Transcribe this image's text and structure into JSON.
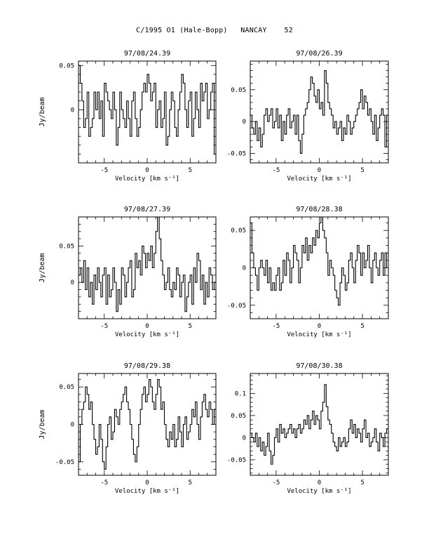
{
  "page": {
    "title": "C/1995 O1 (Hale-Bopp)   NANCAY    52"
  },
  "chart_data": [
    {
      "type": "line",
      "title": "97/08/24.39",
      "xlabel": "Velocity [km s⁻¹]",
      "ylabel": "Jy/beam",
      "xlim": [
        -8,
        8
      ],
      "ylim": [
        -0.06,
        0.055
      ],
      "xticks": [
        -5,
        0,
        5
      ],
      "xtick_labels": [
        "-5",
        "0",
        "5"
      ],
      "yticks": [
        0,
        0.05
      ],
      "ytick_labels": [
        "0",
        "0.05"
      ],
      "series": [
        {
          "x_start": -8,
          "x_step": 0.2,
          "y": [
            0.05,
            0.03,
            0.01,
            -0.02,
            -0.01,
            0.02,
            -0.03,
            -0.02,
            -0.01,
            0.02,
            0.0,
            0.02,
            -0.01,
            0.01,
            -0.03,
            0.03,
            0.02,
            0.01,
            0.0,
            -0.01,
            0.02,
            0.0,
            -0.04,
            -0.02,
            0.02,
            0.0,
            -0.01,
            -0.02,
            0.01,
            -0.01,
            -0.03,
            0.01,
            0.02,
            -0.01,
            -0.03,
            -0.02,
            0.0,
            0.02,
            0.03,
            0.02,
            0.04,
            0.03,
            0.01,
            0.02,
            0.03,
            -0.02,
            0.0,
            0.01,
            -0.02,
            -0.01,
            0.02,
            -0.04,
            -0.03,
            0.0,
            0.02,
            0.01,
            -0.02,
            -0.03,
            0.0,
            0.02,
            0.04,
            0.03,
            0.0,
            -0.02,
            0.01,
            0.02,
            -0.03,
            -0.01,
            0.02,
            0.0,
            -0.02,
            0.03,
            0.01,
            0.02,
            0.03,
            -0.01,
            0.0,
            0.02,
            0.03,
            -0.05
          ]
        }
      ]
    },
    {
      "type": "line",
      "title": "97/08/26.39",
      "xlabel": "Velocity [km s⁻¹]",
      "ylabel": "",
      "xlim": [
        -8,
        8
      ],
      "ylim": [
        -0.065,
        0.095
      ],
      "xticks": [
        -5,
        0,
        5
      ],
      "xtick_labels": [
        "-5",
        "0",
        "5"
      ],
      "yticks": [
        -0.05,
        0,
        0.05
      ],
      "ytick_labels": [
        "-0.05",
        "0",
        "0.05"
      ],
      "series": [
        {
          "x_start": -8,
          "x_step": 0.2,
          "y": [
            0.01,
            -0.01,
            -0.02,
            0.0,
            -0.03,
            -0.01,
            -0.04,
            -0.02,
            0.01,
            0.02,
            0.0,
            0.01,
            0.02,
            -0.01,
            0.0,
            0.02,
            -0.01,
            0.01,
            -0.03,
            0.0,
            -0.02,
            0.01,
            0.02,
            -0.01,
            0.0,
            0.01,
            -0.02,
            0.01,
            -0.03,
            -0.05,
            -0.02,
            0.01,
            0.02,
            0.03,
            0.05,
            0.07,
            0.06,
            0.04,
            0.03,
            0.05,
            0.02,
            0.03,
            0.01,
            0.08,
            0.06,
            0.03,
            0.02,
            0.01,
            -0.01,
            0.0,
            -0.02,
            -0.01,
            0.0,
            -0.03,
            -0.01,
            -0.02,
            0.01,
            0.0,
            -0.02,
            -0.01,
            0.0,
            0.01,
            0.02,
            0.03,
            0.05,
            0.02,
            0.04,
            0.03,
            0.01,
            0.02,
            0.0,
            -0.02,
            0.01,
            -0.03,
            -0.01,
            0.01,
            0.02,
            0.01,
            -0.04,
            0.01
          ]
        }
      ]
    },
    {
      "type": "line",
      "title": "97/08/27.39",
      "xlabel": "Velocity [km s⁻¹]",
      "ylabel": "Jy/beam",
      "xlim": [
        -8,
        8
      ],
      "ylim": [
        -0.05,
        0.09
      ],
      "xticks": [
        -5,
        0,
        5
      ],
      "xtick_labels": [
        "-5",
        "0",
        "5"
      ],
      "yticks": [
        0,
        0.05
      ],
      "ytick_labels": [
        "0",
        "0.05"
      ],
      "series": [
        {
          "x_start": -8,
          "x_step": 0.2,
          "y": [
            0.01,
            0.02,
            0.0,
            0.03,
            -0.01,
            0.02,
            -0.02,
            0.0,
            -0.03,
            0.01,
            -0.01,
            0.02,
            0.0,
            -0.02,
            0.01,
            0.02,
            -0.03,
            0.01,
            -0.02,
            -0.01,
            0.02,
            0.0,
            -0.04,
            -0.01,
            -0.03,
            0.02,
            0.01,
            -0.02,
            0.0,
            0.02,
            0.03,
            -0.02,
            -0.01,
            0.04,
            0.02,
            0.03,
            0.01,
            0.05,
            0.04,
            0.02,
            0.04,
            0.03,
            0.05,
            0.02,
            0.04,
            0.07,
            0.09,
            0.06,
            0.03,
            0.01,
            -0.01,
            0.0,
            0.02,
            -0.01,
            -0.02,
            0.0,
            -0.01,
            0.02,
            0.01,
            -0.02,
            0.0,
            0.01,
            -0.04,
            -0.02,
            0.0,
            0.01,
            -0.03,
            0.02,
            0.0,
            0.04,
            0.03,
            -0.01,
            0.01,
            -0.03,
            0.0,
            -0.02,
            0.02,
            0.01,
            -0.01,
            0.0
          ]
        }
      ]
    },
    {
      "type": "line",
      "title": "97/08/28.38",
      "xlabel": "Velocity [km s⁻¹]",
      "ylabel": "",
      "xlim": [
        -8,
        8
      ],
      "ylim": [
        -0.068,
        0.068
      ],
      "xticks": [
        -5,
        0,
        5
      ],
      "xtick_labels": [
        "-5",
        "0",
        "5"
      ],
      "yticks": [
        -0.05,
        0,
        0.05
      ],
      "ytick_labels": [
        "-0.05",
        "0",
        "0.05"
      ],
      "series": [
        {
          "x_start": -8,
          "x_step": 0.2,
          "y": [
            0.06,
            0.02,
            0.0,
            -0.01,
            -0.03,
            0.0,
            0.01,
            0.0,
            -0.01,
            0.01,
            -0.02,
            0.0,
            -0.03,
            -0.02,
            -0.03,
            -0.01,
            0.0,
            -0.03,
            -0.02,
            0.01,
            -0.01,
            0.02,
            0.01,
            -0.02,
            0.0,
            0.03,
            0.02,
            0.01,
            -0.02,
            0.0,
            0.03,
            0.02,
            0.04,
            0.01,
            0.03,
            0.02,
            0.04,
            0.03,
            0.05,
            0.04,
            0.06,
            0.07,
            0.05,
            0.04,
            0.02,
            -0.01,
            0.01,
            0.0,
            -0.01,
            -0.03,
            -0.04,
            -0.05,
            -0.02,
            0.0,
            -0.01,
            -0.03,
            -0.02,
            0.01,
            0.02,
            0.0,
            -0.02,
            0.01,
            0.03,
            0.02,
            -0.01,
            0.02,
            0.0,
            0.01,
            0.03,
            0.0,
            -0.02,
            0.01,
            0.02,
            0.0,
            -0.01,
            0.01,
            0.02,
            -0.01,
            0.02,
            0.0
          ]
        }
      ]
    },
    {
      "type": "line",
      "title": "97/08/29.38",
      "xlabel": "Velocity [km s⁻¹]",
      "ylabel": "Jy/beam",
      "xlim": [
        -8,
        8
      ],
      "ylim": [
        -0.068,
        0.068
      ],
      "xticks": [
        -5,
        0,
        5
      ],
      "xtick_labels": [
        "-5",
        "0",
        "5"
      ],
      "yticks": [
        -0.05,
        0,
        0.05
      ],
      "ytick_labels": [
        "-0.05",
        "0",
        "0.05"
      ],
      "series": [
        {
          "x_start": -8,
          "x_step": 0.2,
          "y": [
            -0.05,
            0.0,
            0.02,
            0.03,
            0.05,
            0.04,
            0.02,
            0.03,
            0.0,
            -0.02,
            -0.04,
            -0.03,
            0.0,
            -0.02,
            -0.05,
            -0.06,
            -0.03,
            0.0,
            0.01,
            -0.02,
            -0.01,
            0.02,
            0.01,
            0.0,
            0.02,
            0.03,
            0.04,
            0.05,
            0.03,
            0.02,
            0.0,
            -0.02,
            -0.04,
            -0.05,
            -0.03,
            0.0,
            0.02,
            0.04,
            0.05,
            0.03,
            0.04,
            0.06,
            0.05,
            0.03,
            0.02,
            0.04,
            0.06,
            0.05,
            0.02,
            0.03,
            0.0,
            -0.02,
            -0.03,
            -0.01,
            -0.02,
            0.0,
            -0.03,
            -0.02,
            0.01,
            -0.01,
            -0.03,
            0.0,
            0.01,
            -0.02,
            -0.01,
            0.0,
            0.02,
            0.01,
            0.03,
            0.0,
            -0.02,
            0.01,
            0.03,
            0.04,
            0.02,
            0.01,
            0.03,
            0.02,
            0.0,
            0.02
          ]
        }
      ]
    },
    {
      "type": "line",
      "title": "97/08/30.38",
      "xlabel": "Velocity [km s⁻¹]",
      "ylabel": "",
      "xlim": [
        -8,
        8
      ],
      "ylim": [
        -0.085,
        0.145
      ],
      "xticks": [
        -5,
        0,
        5
      ],
      "xtick_labels": [
        "-5",
        "0",
        "5"
      ],
      "yticks": [
        -0.05,
        0,
        0.05,
        0.1
      ],
      "ytick_labels": [
        "-0.05",
        "0",
        "0.05",
        "0.1"
      ],
      "series": [
        {
          "x_start": -8,
          "x_step": 0.2,
          "y": [
            0.01,
            0.0,
            -0.01,
            0.01,
            -0.02,
            0.0,
            -0.03,
            -0.01,
            -0.04,
            -0.02,
            0.01,
            -0.03,
            -0.06,
            -0.04,
            0.0,
            0.02,
            -0.01,
            0.03,
            0.01,
            0.02,
            0.0,
            0.01,
            0.02,
            0.03,
            0.01,
            0.02,
            0.0,
            0.02,
            0.03,
            0.01,
            0.02,
            0.04,
            0.03,
            0.05,
            0.02,
            0.04,
            0.06,
            0.03,
            0.05,
            0.04,
            0.02,
            0.06,
            0.08,
            0.12,
            0.07,
            0.04,
            0.03,
            0.01,
            -0.01,
            -0.02,
            -0.03,
            0.0,
            -0.02,
            -0.01,
            0.0,
            -0.02,
            -0.01,
            0.02,
            0.04,
            0.01,
            0.03,
            0.0,
            0.02,
            0.01,
            -0.01,
            0.02,
            0.04,
            0.0,
            0.01,
            -0.02,
            -0.01,
            0.0,
            0.02,
            -0.01,
            -0.03,
            0.01,
            0.0,
            -0.02,
            0.01,
            0.02
          ]
        }
      ]
    }
  ]
}
